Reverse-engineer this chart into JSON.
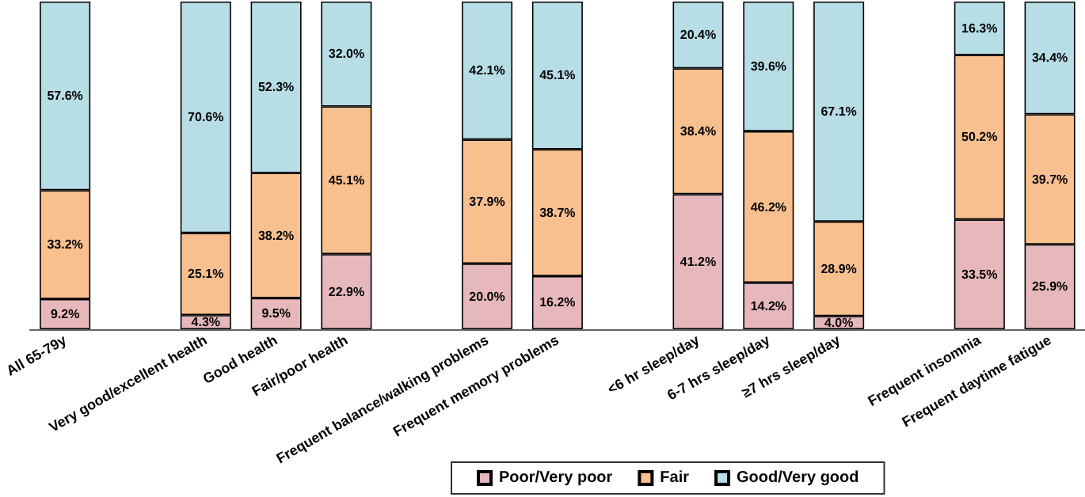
{
  "chart_data": {
    "type": "bar",
    "stacked": true,
    "legend": "bottom",
    "grid": false,
    "categories": [
      "All 65-79y",
      null,
      "Very good/excellent health",
      "Good health",
      "Fair/poor health",
      null,
      "Frequent balance/walking problems",
      "Frequent memory problems",
      null,
      "<6 hr sleep/day",
      "6-7 hrs sleep/day",
      "≥7 hrs sleep/day",
      null,
      "Frequent insomnia",
      "Frequent daytime fatigue"
    ],
    "series": [
      {
        "name": "Poor/Very poor",
        "color": "#e6b8bb",
        "values": [
          9.2,
          null,
          4.3,
          9.5,
          22.9,
          null,
          20.0,
          16.2,
          null,
          41.2,
          14.2,
          4.0,
          null,
          33.5,
          25.9
        ],
        "value_labels": [
          "9.2%",
          null,
          "4.3%",
          "9.5%",
          "22.9%",
          null,
          "20.0%",
          "16.2%",
          null,
          "41.2%",
          "14.2%",
          "4.0%",
          null,
          "33.5%",
          "25.9%"
        ]
      },
      {
        "name": "Fair",
        "color": "#f8c08f",
        "values": [
          33.2,
          null,
          25.1,
          38.2,
          45.1,
          null,
          37.9,
          38.7,
          null,
          38.4,
          46.2,
          28.9,
          null,
          50.2,
          39.7
        ],
        "value_labels": [
          "33.2%",
          null,
          "25.1%",
          "38.2%",
          "45.1%",
          null,
          "37.9%",
          "38.7%",
          null,
          "38.4%",
          "46.2%",
          "28.9%",
          null,
          "50.2%",
          "39.7%"
        ]
      },
      {
        "name": "Good/Very good",
        "color": "#b7dde6",
        "values": [
          57.6,
          null,
          70.6,
          52.3,
          32.0,
          null,
          42.1,
          45.1,
          null,
          20.4,
          39.6,
          67.1,
          null,
          16.3,
          34.4
        ],
        "value_labels": [
          "57.6%",
          null,
          "70.6%",
          "52.3%",
          "32.0%",
          null,
          "42.1%",
          "45.1%",
          null,
          "20.4%",
          "39.6%",
          "67.1%",
          null,
          "16.3%",
          "34.4%"
        ]
      }
    ]
  }
}
